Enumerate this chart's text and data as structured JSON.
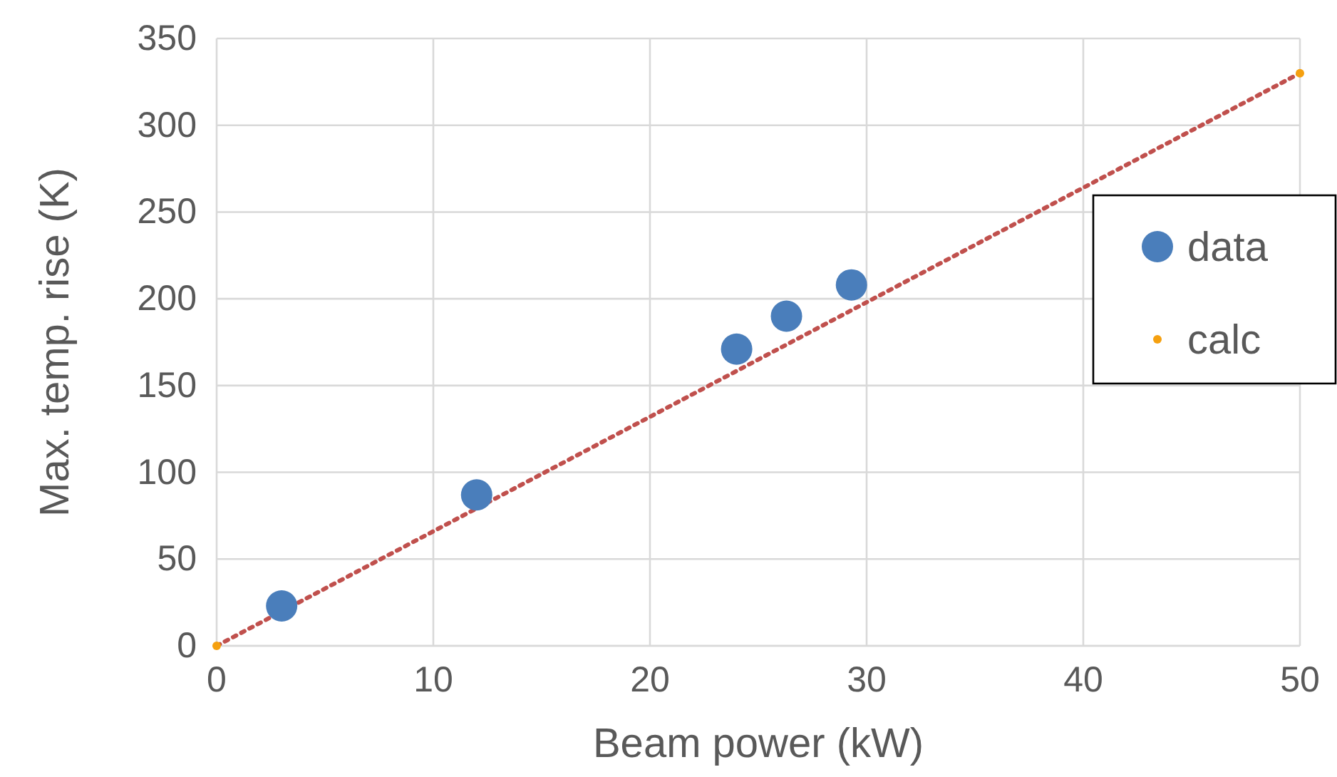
{
  "chart_data": {
    "type": "scatter",
    "xlabel": "Beam power (kW)",
    "ylabel": "Max. temp. rise (K)",
    "xlim": [
      0,
      50
    ],
    "ylim": [
      0,
      350
    ],
    "xticks": [
      0,
      10,
      20,
      30,
      40,
      50
    ],
    "yticks": [
      0,
      50,
      100,
      150,
      200,
      250,
      300,
      350
    ],
    "grid": true,
    "legend": "right",
    "marker": "circle",
    "series": [
      {
        "name": "data",
        "color": "#4a7ebb",
        "x": [
          3,
          12,
          24,
          26.3,
          29.3
        ],
        "values": [
          23,
          87,
          171,
          190,
          208
        ]
      },
      {
        "name": "calc",
        "color": "#f5a00f",
        "x": [
          0,
          50
        ],
        "values": [
          0,
          330
        ]
      },
      {
        "type": "line",
        "color": "#c0504d",
        "line_style": "dotted",
        "marker": "none",
        "x": [
          0,
          50
        ],
        "values": [
          0,
          330
        ]
      }
    ]
  }
}
